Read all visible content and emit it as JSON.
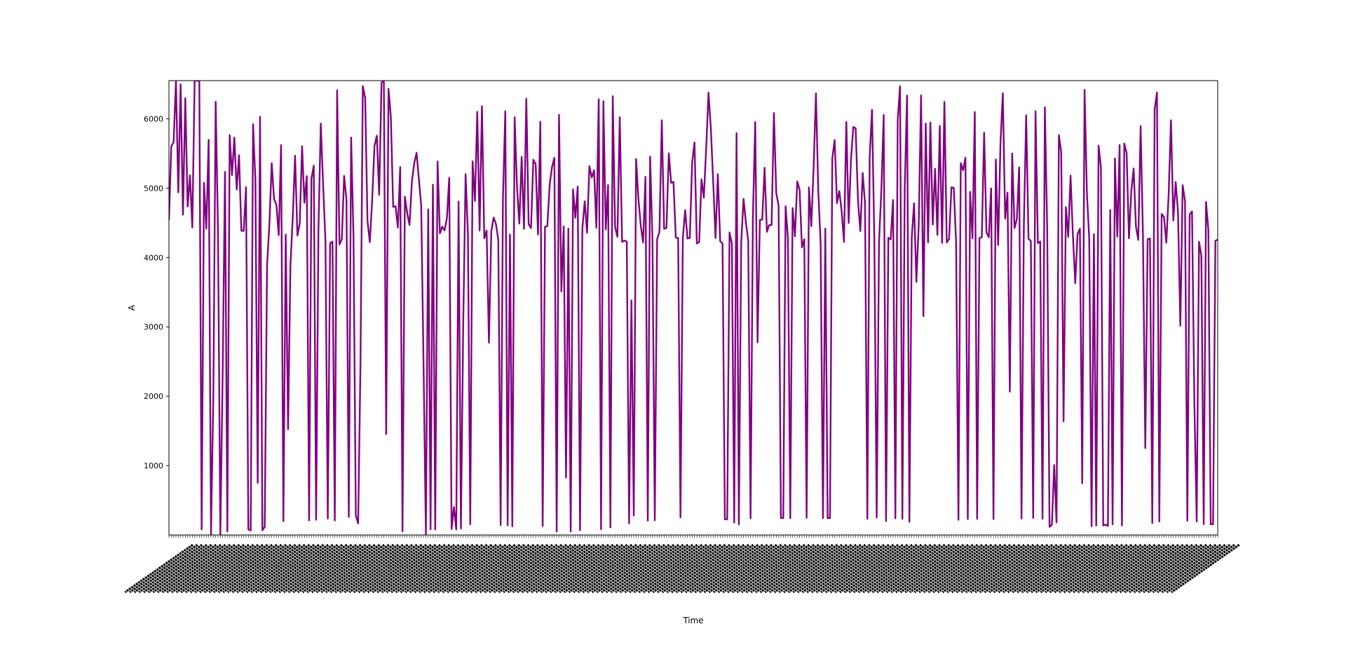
{
  "chart_data": {
    "type": "line",
    "title": "",
    "xlabel": "Time",
    "ylabel": "A",
    "ylim": [
      0,
      6550
    ],
    "yticks": [
      1000,
      2000,
      3000,
      4000,
      5000,
      6000
    ],
    "grid": false,
    "legend": "none",
    "x_tick_labels_rotated": true,
    "x_tick_labels_note": "x tick labels are dense, overlapping and unreadable",
    "series": [
      {
        "color": "#800080",
        "values": [
          4538,
          5603,
          5663,
          6550,
          4939,
          6496,
          4617,
          6297,
          4734,
          5186,
          4433,
          6550,
          6550,
          6550,
          80,
          5077,
          4418,
          5698,
          10,
          2000,
          6246,
          4385,
          4,
          2330,
          5235,
          50,
          5766,
          5187,
          5731,
          4981,
          5475,
          4386,
          4384,
          5015,
          80,
          66,
          5922,
          5130,
          750,
          6030,
          67,
          117,
          3889,
          4480,
          5361,
          4843,
          4761,
          4322,
          5621,
          198,
          4331,
          1525,
          3883,
          4569,
          5468,
          4315,
          4493,
          5606,
          4788,
          5173,
          210,
          5138,
          5325,
          219,
          4393,
          5931,
          5055,
          4237,
          236,
          4206,
          4230,
          208,
          6410,
          4188,
          4264,
          5177,
          4830,
          261,
          5729,
          4317,
          283,
          166,
          2466,
          6472,
          6300,
          4525,
          4222,
          4830,
          5612,
          5756,
          4903,
          6523,
          6550,
          1456,
          6433,
          6030,
          4729,
          4741,
          4431,
          5303,
          51,
          4876,
          4640,
          4470,
          5089,
          5358,
          5510,
          5132,
          4746,
          2466,
          15,
          4693,
          80,
          5049,
          80,
          5386,
          4349,
          4445,
          4391,
          4567,
          5150,
          86,
          402,
          80,
          4807,
          93,
          3060,
          5202,
          4337,
          154,
          5387,
          4815,
          6101,
          4388,
          6181,
          4277,
          4389,
          2771,
          4374,
          4577,
          4484,
          4255,
          142,
          4860,
          6110,
          139,
          4331,
          124,
          6022,
          5025,
          4489,
          5451,
          4413,
          6289,
          4480,
          4423,
          5410,
          5346,
          4331,
          5958,
          128,
          4445,
          4451,
          5050,
          5304,
          5438,
          49,
          6058,
          3509,
          4448,
          829,
          4417,
          50,
          4983,
          4573,
          5024,
          69,
          4419,
          4811,
          4356,
          5319,
          5154,
          5259,
          4428,
          6281,
          82,
          6253,
          4406,
          5045,
          109,
          6325,
          4441,
          4299,
          6023,
          4225,
          4244,
          4230,
          167,
          3383,
          280,
          5422,
          4843,
          4460,
          4216,
          5163,
          207,
          5456,
          4266,
          213,
          4261,
          4375,
          5978,
          4414,
          4427,
          5503,
          5077,
          5090,
          4287,
          4282,
          253,
          4277,
          4683,
          4273,
          4282,
          5369,
          5660,
          4202,
          4224,
          5126,
          4864,
          5573,
          6376,
          5859,
          5098,
          4281,
          5201,
          4235,
          4203,
          226,
          226,
          4362,
          4200,
          179,
          5794,
          152,
          4209,
          4846,
          4507,
          4250,
          240,
          4582,
          5954,
          2777,
          4543,
          4545,
          5293,
          4370,
          4470,
          4469,
          6082,
          4930,
          4749,
          245,
          244,
          4740,
          4280,
          242,
          4714,
          4306,
          5097,
          4979,
          4146,
          4264,
          248,
          5010,
          4451,
          5302,
          6366,
          4951,
          4210,
          243,
          4417,
          243,
          243,
          5429,
          5694,
          4784,
          4958,
          4667,
          4225,
          5955,
          4498,
          5414,
          5883,
          5863,
          4819,
          4380,
          5220,
          4778,
          233,
          5452,
          6130,
          4247,
          252,
          4224,
          4967,
          6055,
          200,
          4285,
          4262,
          4828,
          241,
          5985,
          6468,
          233,
          4980,
          6336,
          190,
          4282,
          4783,
          3648,
          4470,
          6337,
          3154,
          5932,
          4218,
          5947,
          4476,
          5279,
          4325,
          5896,
          4210,
          6244,
          4217,
          4268,
          5013,
          5003,
          4219,
          218,
          5360,
          5258,
          5439,
          230,
          4947,
          4277,
          6097,
          233,
          4281,
          4293,
          5797,
          4363,
          4291,
          4997,
          230,
          5413,
          4181,
          5646,
          6369,
          4561,
          4937,
          2066,
          5501,
          4424,
          4552,
          5300,
          237,
          4447,
          6050,
          4269,
          4239,
          244,
          6110,
          4208,
          4230,
          232,
          6167,
          4412,
          117,
          146,
          1008,
          182,
          5765,
          5522,
          1639,
          4726,
          4298,
          5181,
          4318,
          3631,
          4338,
          4415,
          746,
          6416,
          4931,
          4263,
          125,
          4336,
          136,
          5613,
          5303,
          137,
          150,
          129,
          4686,
          153,
          5429,
          4300,
          5623,
          139,
          5643,
          5506,
          4276,
          4952,
          5284,
          4445,
          4253,
          5895,
          4311,
          1252,
          4263,
          4275,
          172,
          6133,
          6380,
          194,
          4627,
          4585,
          4213,
          4910,
          5978,
          4534,
          5089,
          4656,
          3017,
          5043,
          4817,
          205,
          4623,
          4664,
          1928,
          194,
          4228,
          4025,
          155,
          4802,
          4400,
          154,
          156,
          4241,
          4258
        ]
      }
    ]
  }
}
